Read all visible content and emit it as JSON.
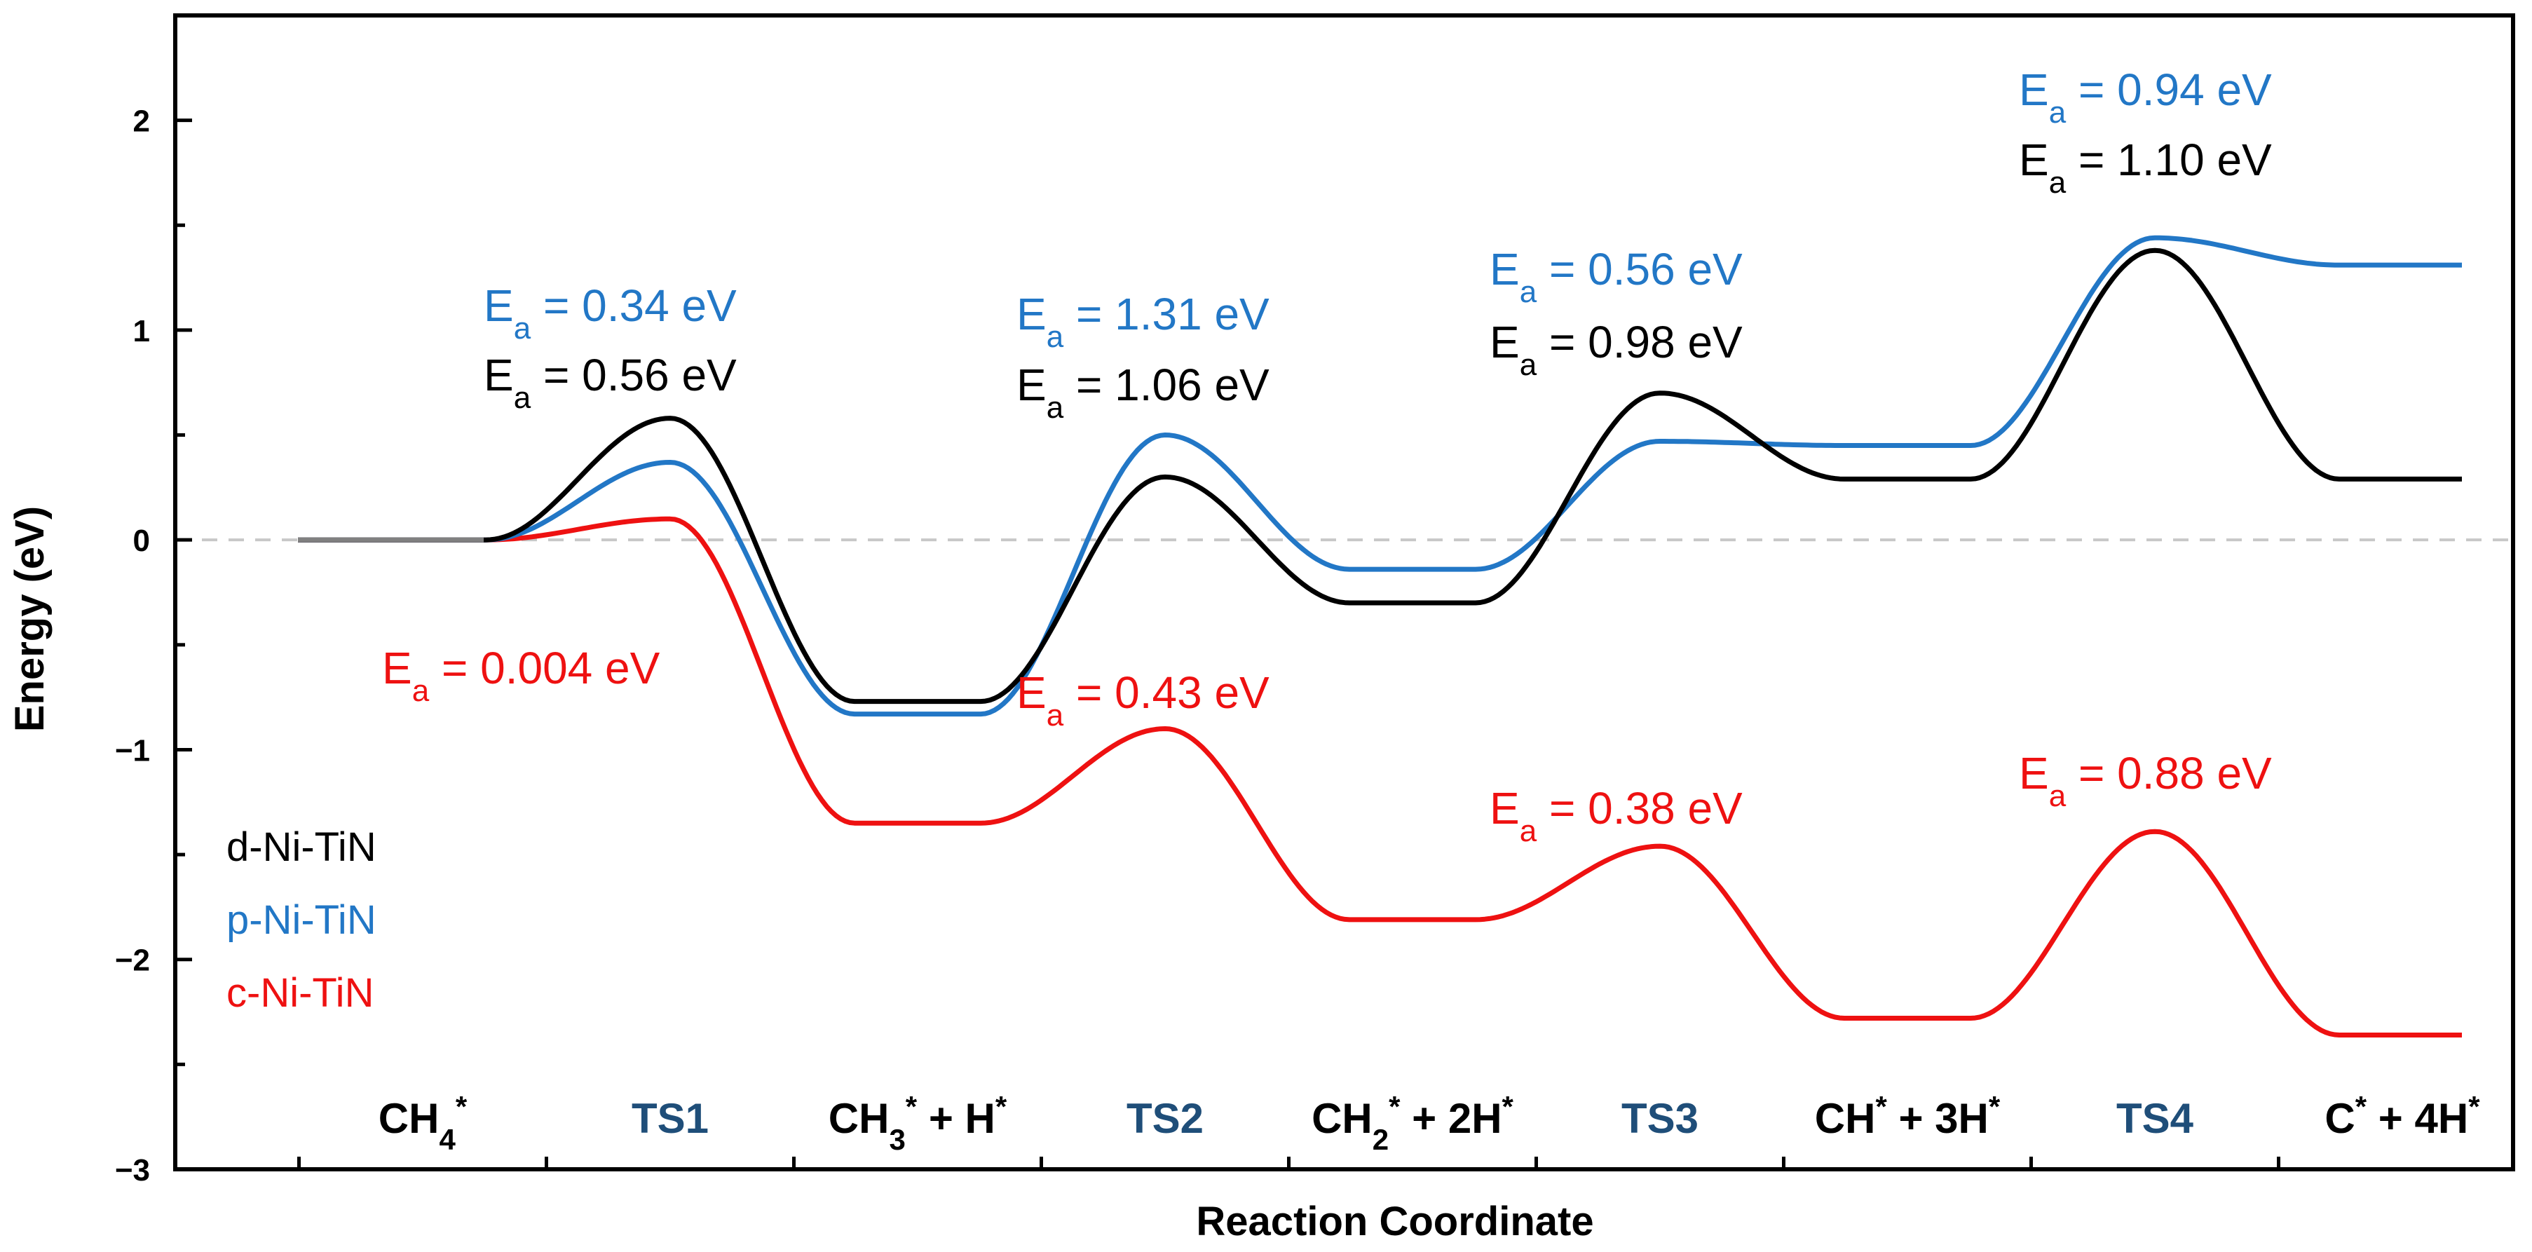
{
  "chart_data": {
    "type": "line",
    "xlabel": "Reaction Coordinate",
    "ylabel": "Energy (eV)",
    "ylim": [
      -3,
      2.5
    ],
    "yticks": [
      2,
      1,
      0,
      -1,
      -2,
      -3
    ],
    "ytick_labels": [
      "2",
      "1",
      "0",
      "−1",
      "−2",
      "−3"
    ],
    "zero_line": true,
    "categories": [
      {
        "base": "CH",
        "sub": "4",
        "sup": "*",
        "rest": "",
        "color": "#000000"
      },
      {
        "base": "TS1",
        "sub": "",
        "sup": "",
        "rest": "",
        "color": "#1f4e79"
      },
      {
        "base": "CH",
        "sub": "3",
        "sup": "*",
        "rest": " + H*",
        "color": "#000000"
      },
      {
        "base": "TS2",
        "sub": "",
        "sup": "",
        "rest": "",
        "color": "#1f4e79"
      },
      {
        "base": "CH",
        "sub": "2",
        "sup": "*",
        "rest": " + 2H*",
        "color": "#000000"
      },
      {
        "base": "TS3",
        "sub": "",
        "sup": "",
        "rest": "",
        "color": "#1f4e79"
      },
      {
        "base": "CH",
        "sub": "",
        "sup": "*",
        "rest": " + 3H*",
        "color": "#000000"
      },
      {
        "base": "TS4",
        "sub": "",
        "sup": "",
        "rest": "",
        "color": "#1f4e79"
      },
      {
        "base": "C",
        "sub": "",
        "sup": "*",
        "rest": " + 4H*",
        "color": "#000000"
      }
    ],
    "series": [
      {
        "name": "d-Ni-TiN",
        "color": "#000000",
        "levels": [
          0,
          -0.77,
          -0.3,
          0.29,
          0.29
        ],
        "ts": [
          0.58,
          0.3,
          0.7,
          1.38
        ]
      },
      {
        "name": "p-Ni-TiN",
        "color": "#2277c6",
        "levels": [
          0,
          -0.83,
          -0.14,
          0.45,
          1.31
        ],
        "ts": [
          0.37,
          0.5,
          0.47,
          1.44
        ]
      },
      {
        "name": "c-Ni-TiN",
        "color": "#ee1111",
        "levels": [
          0,
          -1.35,
          -1.81,
          -2.28,
          -2.36
        ],
        "ts": [
          0.1,
          -0.9,
          -1.46,
          -1.39
        ]
      }
    ],
    "annotations": [
      {
        "text": "0.34 eV",
        "series": "p-Ni-TiN",
        "color": "#2277c6"
      },
      {
        "text": "0.56 eV",
        "series": "d-Ni-TiN",
        "color": "#000000"
      },
      {
        "text": "1.31 eV",
        "series": "p-Ni-TiN",
        "color": "#2277c6"
      },
      {
        "text": "1.06 eV",
        "series": "d-Ni-TiN",
        "color": "#000000"
      },
      {
        "text": "0.56 eV",
        "series": "p-Ni-TiN",
        "color": "#2277c6"
      },
      {
        "text": "0.98 eV",
        "series": "d-Ni-TiN",
        "color": "#000000"
      },
      {
        "text": "0.94 eV",
        "series": "p-Ni-TiN",
        "color": "#2277c6"
      },
      {
        "text": "1.10 eV",
        "series": "d-Ni-TiN",
        "color": "#000000"
      },
      {
        "text": "0.004 eV",
        "series": "c-Ni-TiN",
        "color": "#ee1111"
      },
      {
        "text": " 0.43 eV",
        "series": "c-Ni-TiN",
        "color": "#ee1111"
      },
      {
        "text": "0.38 eV",
        "series": "c-Ni-TiN",
        "color": "#ee1111"
      },
      {
        "text": "0.88 eV",
        "series": "c-Ni-TiN",
        "color": "#ee1111"
      }
    ],
    "ea_prefix": "E",
    "ea_sub": "a",
    "ea_eq": " = "
  }
}
